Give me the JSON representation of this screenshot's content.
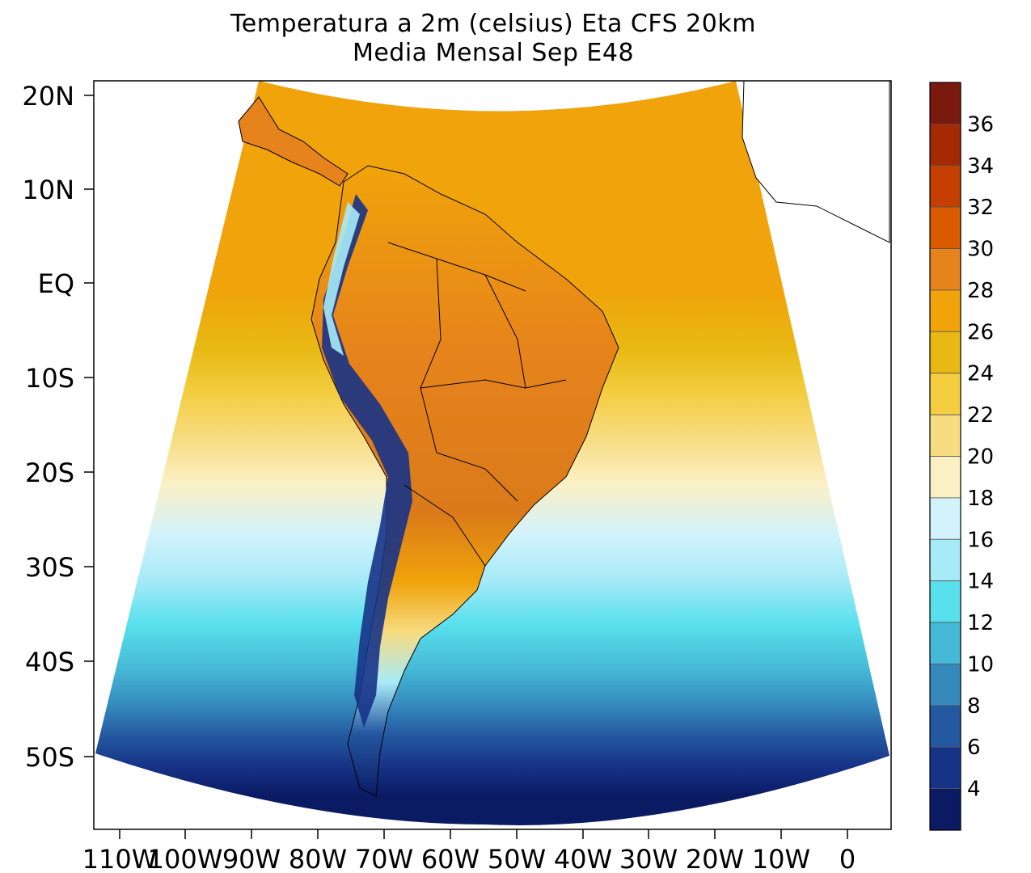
{
  "title": {
    "line1": "Temperatura a 2m (celsius) Eta CFS 20km",
    "line2": "Media Mensal Sep  E48"
  },
  "axes": {
    "y_ticks": [
      "20N",
      "10N",
      "EQ",
      "10S",
      "20S",
      "30S",
      "40S",
      "50S"
    ],
    "x_ticks": [
      "110W",
      "100W",
      "90W",
      "80W",
      "70W",
      "60W",
      "50W",
      "40W",
      "30W",
      "20W",
      "10W",
      "0"
    ]
  },
  "colorbar": {
    "labels": [
      "36",
      "34",
      "32",
      "30",
      "28",
      "26",
      "24",
      "22",
      "20",
      "18",
      "16",
      "14",
      "12",
      "10",
      "8",
      "6",
      "4"
    ],
    "colors": [
      "#7a1a0e",
      "#a32a05",
      "#c43f00",
      "#da5a00",
      "#e6831c",
      "#f0a30a",
      "#e8b914",
      "#f4cd40",
      "#f7dc82",
      "#fbf0c4",
      "#d2f3fb",
      "#a7eaf8",
      "#58e0ec",
      "#45b9d6",
      "#3589bd",
      "#2458a0",
      "#173387",
      "#0a1b64"
    ]
  },
  "map": {
    "ocean_north": "#f0a30a",
    "ocean_south": "#0a1b64",
    "land_color": "#e6831c"
  }
}
